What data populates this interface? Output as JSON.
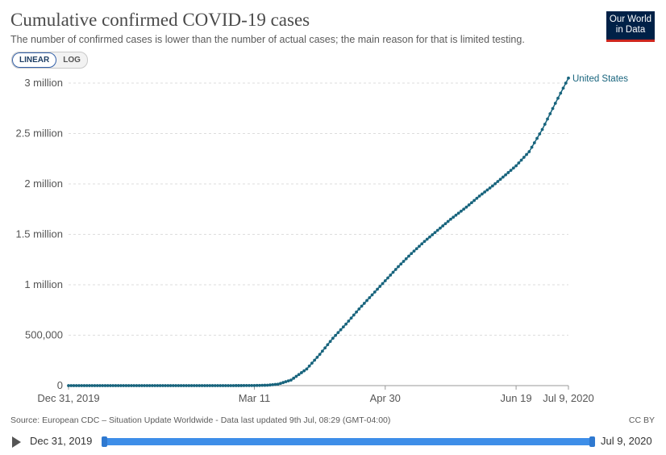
{
  "title": "Cumulative confirmed COVID-19 cases",
  "subtitle": "The number of confirmed cases is lower than the number of actual cases; the main reason for that is limited testing.",
  "logo": {
    "line1": "Our World",
    "line2": "in Data"
  },
  "scale_toggle": {
    "linear": "LINEAR",
    "log": "LOG",
    "selected": "LINEAR"
  },
  "source": "Source: European CDC – Situation Update Worldwide - Data last updated 9th Jul, 08:29 (GMT-04:00)",
  "license": "CC BY",
  "timeline": {
    "start": "Dec 31, 2019",
    "end": "Jul 9, 2020"
  },
  "colors": {
    "series": "#18647d",
    "grid": "#dddddd",
    "brand": "#002147",
    "timeline": "#3e8ee8"
  },
  "chart_data": {
    "type": "line",
    "yticks": [
      {
        "v": 0,
        "label": "0"
      },
      {
        "v": 500000,
        "label": "500,000"
      },
      {
        "v": 1000000,
        "label": "1 million"
      },
      {
        "v": 1500000,
        "label": "1.5 million"
      },
      {
        "v": 2000000,
        "label": "2 million"
      },
      {
        "v": 2500000,
        "label": "2.5 million"
      },
      {
        "v": 3000000,
        "label": "3 million"
      }
    ],
    "xticks": [
      {
        "date": "2019-12-31",
        "label": "Dec 31, 2019"
      },
      {
        "date": "2020-03-11",
        "label": "Mar 11"
      },
      {
        "date": "2020-04-30",
        "label": "Apr 30"
      },
      {
        "date": "2020-06-19",
        "label": "Jun 19"
      },
      {
        "date": "2020-07-09",
        "label": "Jul 9, 2020"
      }
    ],
    "ylim": [
      0,
      3000000
    ],
    "xlim": [
      "2019-12-31",
      "2020-07-09"
    ],
    "grid": true,
    "series": [
      {
        "name": "United States",
        "points": [
          {
            "date": "2019-12-31",
            "value": 0
          },
          {
            "date": "2020-03-01",
            "value": 30
          },
          {
            "date": "2020-03-11",
            "value": 1000
          },
          {
            "date": "2020-03-16",
            "value": 4000
          },
          {
            "date": "2020-03-20",
            "value": 14000
          },
          {
            "date": "2020-03-25",
            "value": 55000
          },
          {
            "date": "2020-03-31",
            "value": 165000
          },
          {
            "date": "2020-04-05",
            "value": 310000
          },
          {
            "date": "2020-04-10",
            "value": 470000
          },
          {
            "date": "2020-04-15",
            "value": 610000
          },
          {
            "date": "2020-04-20",
            "value": 760000
          },
          {
            "date": "2020-04-25",
            "value": 900000
          },
          {
            "date": "2020-04-30",
            "value": 1040000
          },
          {
            "date": "2020-05-05",
            "value": 1180000
          },
          {
            "date": "2020-05-10",
            "value": 1310000
          },
          {
            "date": "2020-05-15",
            "value": 1430000
          },
          {
            "date": "2020-05-20",
            "value": 1540000
          },
          {
            "date": "2020-05-25",
            "value": 1650000
          },
          {
            "date": "2020-05-31",
            "value": 1770000
          },
          {
            "date": "2020-06-05",
            "value": 1880000
          },
          {
            "date": "2020-06-10",
            "value": 1980000
          },
          {
            "date": "2020-06-15",
            "value": 2090000
          },
          {
            "date": "2020-06-19",
            "value": 2180000
          },
          {
            "date": "2020-06-24",
            "value": 2320000
          },
          {
            "date": "2020-06-29",
            "value": 2540000
          },
          {
            "date": "2020-07-04",
            "value": 2800000
          },
          {
            "date": "2020-07-09",
            "value": 3050000
          }
        ]
      }
    ]
  }
}
